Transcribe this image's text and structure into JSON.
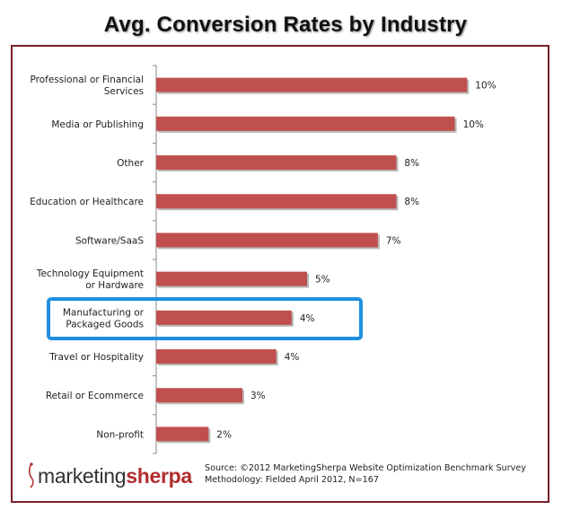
{
  "title": "Avg. Conversion Rates by Industry",
  "colors": {
    "bar": "#c0504d",
    "frame": "#7a1f2a",
    "highlight": "#1f8fe0"
  },
  "chart_data": {
    "type": "bar",
    "orientation": "horizontal",
    "title": "Avg. Conversion Rates by Industry",
    "categories": [
      [
        "Professional or Financial",
        "Services"
      ],
      [
        "Media or Publishing"
      ],
      [
        "Other"
      ],
      [
        "Education or Healthcare"
      ],
      [
        "Software/SaaS"
      ],
      [
        "Technology Equipment",
        "or Hardware"
      ],
      [
        "Manufacturing or",
        "Packaged Goods"
      ],
      [
        "Travel or Hospitality"
      ],
      [
        "Retail or Ecommerce"
      ],
      [
        "Non-profit"
      ]
    ],
    "values": [
      10.1,
      9.7,
      7.8,
      7.8,
      7.2,
      4.9,
      4.4,
      3.9,
      2.8,
      1.7
    ],
    "labels": [
      "10%",
      "10%",
      "8%",
      "8%",
      "7%",
      "5%",
      "4%",
      "4%",
      "3%",
      "2%"
    ],
    "highlighted_category": "Manufacturing or Packaged Goods",
    "xlim": [
      0,
      10.5
    ],
    "grid": false,
    "legend": "none"
  },
  "logo": {
    "part1": "marketing",
    "part2": "sherpa"
  },
  "source": {
    "line1": "Source: ©2012 MarketingSherpa Website Optimization Benchmark Survey",
    "line2": "Methodology: Fielded April 2012, N=167"
  }
}
